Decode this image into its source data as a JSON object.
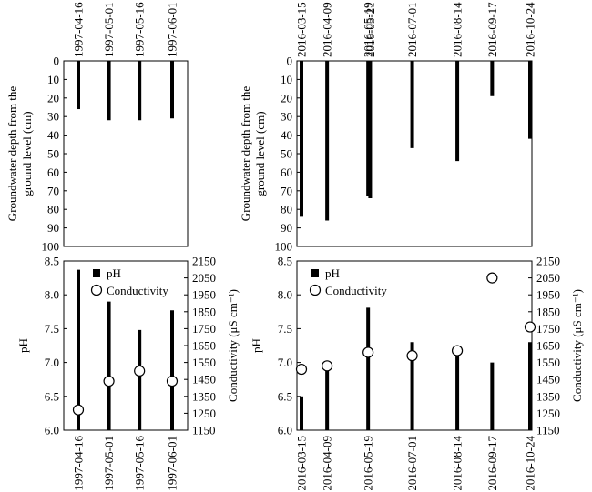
{
  "chart_data": [
    {
      "id": "depth-1997",
      "type": "bar",
      "ylabel": [
        "Groundwater depth from the",
        "ground level (cm)"
      ],
      "ylim": [
        0,
        100
      ],
      "yticks": [
        0,
        10,
        20,
        30,
        40,
        50,
        60,
        70,
        80,
        90,
        100
      ],
      "dates": [
        "1997-04-16",
        "1997-05-01",
        "1997-05-16",
        "1997-06-01"
      ],
      "values": [
        26,
        32,
        32,
        31
      ]
    },
    {
      "id": "depth-2016",
      "type": "bar",
      "ylabel": [
        "Groundwater depth from the",
        "ground level (cm)"
      ],
      "ylim": [
        0,
        100
      ],
      "yticks": [
        0,
        10,
        20,
        30,
        40,
        50,
        60,
        70,
        80,
        90,
        100
      ],
      "dates": [
        "2016-03-15",
        "2016-04-09",
        "2016-05-19",
        "2016-05-21",
        "2016-07-01",
        "2016-08-14",
        "2016-09-17",
        "2016-10-24"
      ],
      "values": [
        84,
        86,
        73,
        74,
        47,
        54,
        19,
        42
      ]
    },
    {
      "id": "quality-1997",
      "type": "bar",
      "ylabel": "pH",
      "y2label": "Conductivity (μS cm⁻¹)",
      "ylim": [
        6.0,
        8.5
      ],
      "yticks": [
        "6.0",
        "6.5",
        "7.0",
        "7.5",
        "8.0",
        "8.5"
      ],
      "y2lim": [
        1150,
        2150
      ],
      "y2ticks": [
        1150,
        1250,
        1350,
        1450,
        1550,
        1650,
        1750,
        1850,
        1950,
        2050,
        2150
      ],
      "dates": [
        "1997-04-16",
        "1997-05-01",
        "1997-05-16",
        "1997-06-01"
      ],
      "series": [
        {
          "name": "pH",
          "values": [
            8.37,
            7.9,
            7.48,
            7.77
          ]
        },
        {
          "name": "Conductivity",
          "values": [
            1270,
            1440,
            1500,
            1440
          ]
        }
      ]
    },
    {
      "id": "quality-2016",
      "type": "bar",
      "ylabel": "pH",
      "y2label": "Conductivity (μS cm⁻¹)",
      "ylim": [
        6.0,
        8.5
      ],
      "yticks": [
        "6.0",
        "6.5",
        "7.0",
        "7.5",
        "8.0",
        "8.5"
      ],
      "y2lim": [
        1150,
        2150
      ],
      "y2ticks": [
        1150,
        1250,
        1350,
        1450,
        1550,
        1650,
        1750,
        1850,
        1950,
        2050,
        2150
      ],
      "dates": [
        "2016-03-15",
        "2016-04-09",
        "2016-05-19",
        "2016-07-01",
        "2016-08-14",
        "2016-09-17",
        "2016-10-24"
      ],
      "series": [
        {
          "name": "pH",
          "values": [
            6.5,
            6.99,
            7.81,
            7.3,
            7.18,
            7.0,
            7.3
          ]
        },
        {
          "name": "Conductivity",
          "values": [
            1510,
            1530,
            1610,
            1590,
            1620,
            2050,
            1760
          ]
        }
      ]
    }
  ]
}
